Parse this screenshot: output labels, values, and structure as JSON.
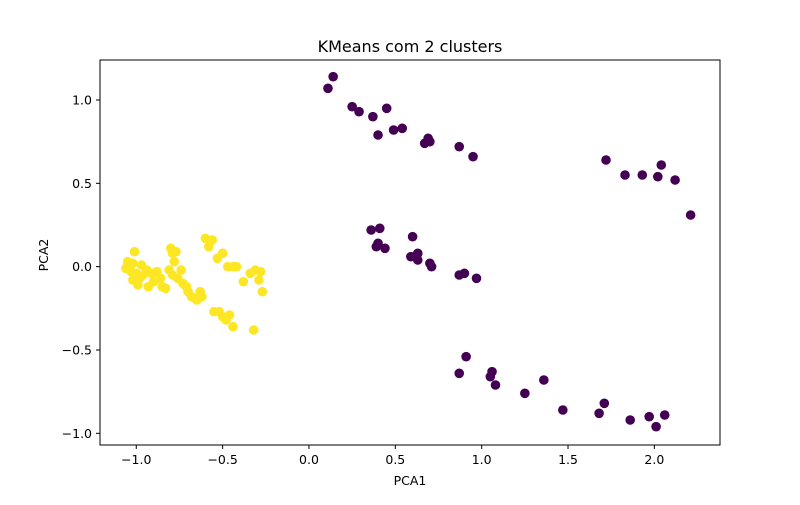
{
  "chart_data": {
    "type": "scatter",
    "title": "KMeans com 2 clusters",
    "xlabel": "PCA1",
    "ylabel": "PCA2",
    "xlim": [
      -1.21,
      2.38
    ],
    "ylim": [
      -1.07,
      1.24
    ],
    "xticks": [
      -1.0,
      -0.5,
      0.0,
      0.5,
      1.0,
      1.5,
      2.0
    ],
    "xtick_labels": [
      "−1.0",
      "−0.5",
      "0.0",
      "0.5",
      "1.0",
      "1.5",
      "2.0"
    ],
    "yticks": [
      -1.0,
      -0.5,
      0.0,
      0.5,
      1.0
    ],
    "ytick_labels": [
      "−1.0",
      "−0.5",
      "0.0",
      "0.5",
      "1.0"
    ],
    "grid": false,
    "legend": "none",
    "series": [
      {
        "color": "#440154",
        "points": [
          [
            0.11,
            1.07
          ],
          [
            0.14,
            1.14
          ],
          [
            0.25,
            0.96
          ],
          [
            0.29,
            0.93
          ],
          [
            0.37,
            0.9
          ],
          [
            0.45,
            0.95
          ],
          [
            0.4,
            0.79
          ],
          [
            0.49,
            0.82
          ],
          [
            0.54,
            0.83
          ],
          [
            0.67,
            0.74
          ],
          [
            0.69,
            0.77
          ],
          [
            0.7,
            0.75
          ],
          [
            0.87,
            0.72
          ],
          [
            0.95,
            0.66
          ],
          [
            1.72,
            0.64
          ],
          [
            1.83,
            0.55
          ],
          [
            1.93,
            0.55
          ],
          [
            2.02,
            0.54
          ],
          [
            2.04,
            0.61
          ],
          [
            2.12,
            0.52
          ],
          [
            2.21,
            0.31
          ],
          [
            0.36,
            0.22
          ],
          [
            0.41,
            0.23
          ],
          [
            0.39,
            0.12
          ],
          [
            0.4,
            0.14
          ],
          [
            0.44,
            0.11
          ],
          [
            0.6,
            0.18
          ],
          [
            0.59,
            0.06
          ],
          [
            0.63,
            0.08
          ],
          [
            0.63,
            0.04
          ],
          [
            0.7,
            0.02
          ],
          [
            0.71,
            0.0
          ],
          [
            0.87,
            -0.05
          ],
          [
            0.9,
            -0.04
          ],
          [
            0.97,
            -0.07
          ],
          [
            0.87,
            -0.64
          ],
          [
            0.91,
            -0.54
          ],
          [
            1.05,
            -0.66
          ],
          [
            1.06,
            -0.63
          ],
          [
            1.08,
            -0.71
          ],
          [
            1.25,
            -0.76
          ],
          [
            1.36,
            -0.68
          ],
          [
            1.47,
            -0.86
          ],
          [
            1.68,
            -0.88
          ],
          [
            1.71,
            -0.82
          ],
          [
            1.86,
            -0.92
          ],
          [
            1.97,
            -0.9
          ],
          [
            2.01,
            -0.96
          ],
          [
            2.06,
            -0.89
          ]
        ]
      },
      {
        "color": "#fde725",
        "points": [
          [
            -1.05,
            0.03
          ],
          [
            -1.06,
            -0.01
          ],
          [
            -1.04,
            0.0
          ],
          [
            -1.03,
            -0.03
          ],
          [
            -1.02,
            0.02
          ],
          [
            -1.01,
            0.09
          ],
          [
            -1.0,
            -0.04
          ],
          [
            -1.02,
            -0.08
          ],
          [
            -0.99,
            -0.11
          ],
          [
            -0.98,
            -0.07
          ],
          [
            -0.97,
            0.01
          ],
          [
            -0.96,
            -0.05
          ],
          [
            -0.94,
            -0.02
          ],
          [
            -0.93,
            -0.12
          ],
          [
            -0.91,
            -0.04
          ],
          [
            -0.9,
            -0.09
          ],
          [
            -0.88,
            -0.03
          ],
          [
            -0.86,
            -0.07
          ],
          [
            -0.85,
            -0.12
          ],
          [
            -0.83,
            -0.13
          ],
          [
            -0.81,
            -0.02
          ],
          [
            -0.8,
            0.11
          ],
          [
            -0.79,
            0.08
          ],
          [
            -0.78,
            0.03
          ],
          [
            -0.77,
            0.09
          ],
          [
            -0.79,
            -0.05
          ],
          [
            -0.76,
            -0.07
          ],
          [
            -0.74,
            -0.02
          ],
          [
            -0.73,
            -0.1
          ],
          [
            -0.71,
            -0.12
          ],
          [
            -0.7,
            -0.15
          ],
          [
            -0.68,
            -0.18
          ],
          [
            -0.66,
            -0.19
          ],
          [
            -0.65,
            -0.2
          ],
          [
            -0.63,
            -0.15
          ],
          [
            -0.62,
            -0.18
          ],
          [
            -0.6,
            0.17
          ],
          [
            -0.58,
            0.12
          ],
          [
            -0.56,
            0.16
          ],
          [
            -0.53,
            0.05
          ],
          [
            -0.5,
            0.08
          ],
          [
            -0.47,
            0.0
          ],
          [
            -0.44,
            0.0
          ],
          [
            -0.42,
            0.0
          ],
          [
            -0.55,
            -0.27
          ],
          [
            -0.52,
            -0.27
          ],
          [
            -0.5,
            -0.3
          ],
          [
            -0.48,
            -0.32
          ],
          [
            -0.46,
            -0.29
          ],
          [
            -0.44,
            -0.36
          ],
          [
            -0.38,
            -0.09
          ],
          [
            -0.34,
            -0.04
          ],
          [
            -0.31,
            -0.02
          ],
          [
            -0.29,
            -0.08
          ],
          [
            -0.27,
            -0.15
          ],
          [
            -0.32,
            -0.38
          ],
          [
            -0.28,
            -0.03
          ]
        ]
      }
    ]
  }
}
